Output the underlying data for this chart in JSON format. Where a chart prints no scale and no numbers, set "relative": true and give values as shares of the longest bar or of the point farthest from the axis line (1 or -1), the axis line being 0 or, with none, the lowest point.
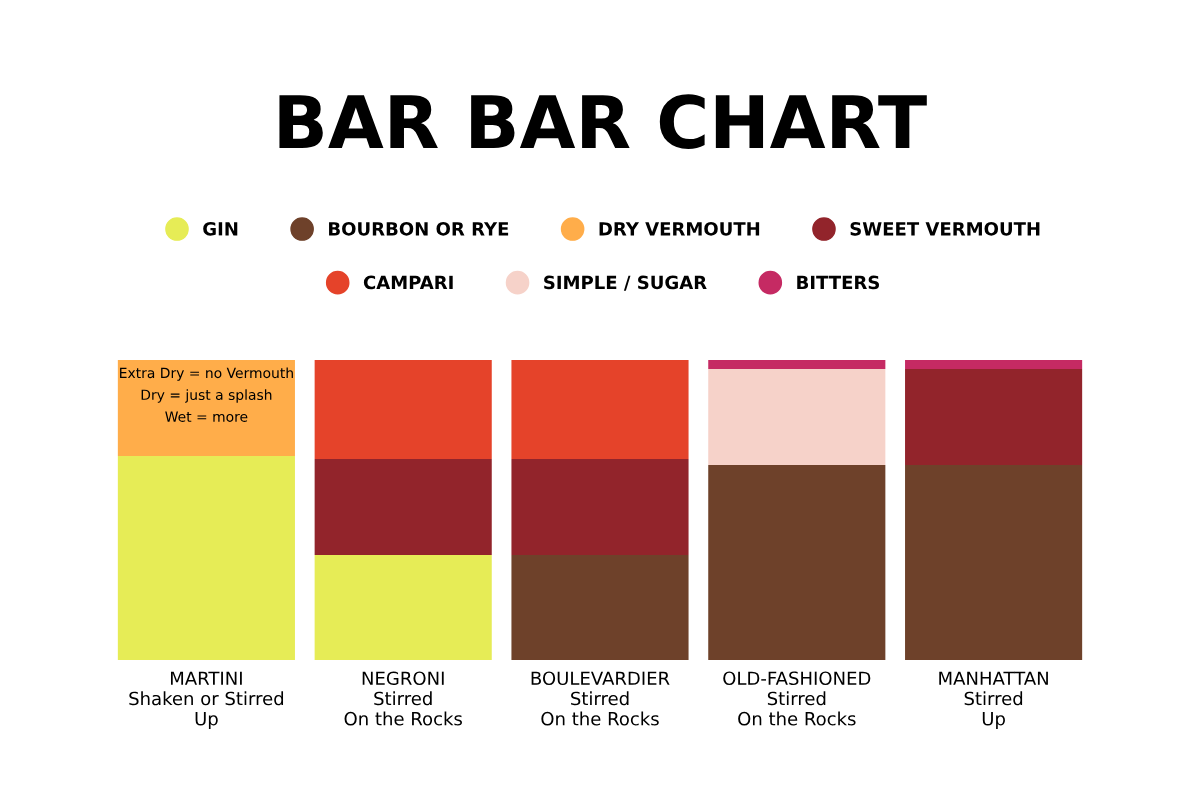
{
  "chart_data": {
    "type": "bar",
    "title": "BAR BAR CHART",
    "relative": true,
    "stacked": true,
    "legend": "top",
    "grid": false,
    "categories": [
      "MARTINI\nShaken or Stirred\nUp",
      "NEGRONI\nStirred\nOn the Rocks",
      "BOULEVARDIER\nStirred\nOn the Rocks",
      "OLD-FASHIONED\nStirred\nOn the Rocks",
      "MANHATTAN\nStirred\nUp"
    ],
    "series": [
      {
        "name": "GIN",
        "color": "#e6ec56",
        "values": [
          0.68,
          0.35,
          null,
          null,
          null
        ]
      },
      {
        "name": "BOURBON OR RYE",
        "color": "#6e412a",
        "values": [
          null,
          null,
          0.35,
          0.65,
          0.65
        ]
      },
      {
        "name": "DRY VERMOUTH",
        "color": "#ffad4a",
        "values": [
          0.32,
          null,
          null,
          null,
          null
        ]
      },
      {
        "name": "SWEET VERMOUTH",
        "color": "#92242b",
        "values": [
          null,
          0.32,
          0.32,
          null,
          0.32
        ]
      },
      {
        "name": "CAMPARI",
        "color": "#e5432a",
        "values": [
          null,
          0.33,
          0.33,
          null,
          null
        ]
      },
      {
        "name": "SIMPLE / SUGAR",
        "color": "#f6d2c9",
        "values": [
          null,
          null,
          null,
          0.32,
          null
        ]
      },
      {
        "name": "BITTERS",
        "color": "#c52a63",
        "values": [
          null,
          null,
          null,
          0.03,
          0.03
        ]
      }
    ],
    "annotations": [
      "Extra Dry = no Vermouth\nDry = just a splash\nWet = more"
    ]
  }
}
